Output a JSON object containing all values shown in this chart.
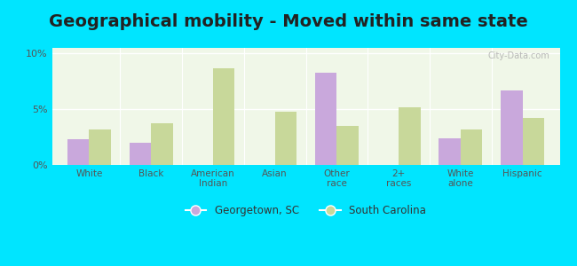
{
  "title": "Geographical mobility - Moved within same state",
  "categories": [
    "White",
    "Black",
    "American\nIndian",
    "Asian",
    "Other\nrace",
    "2+\nraces",
    "White\nalone",
    "Hispanic"
  ],
  "georgetown_values": [
    2.3,
    2.0,
    0.0,
    0.0,
    8.3,
    0.0,
    2.4,
    6.7
  ],
  "sc_values": [
    3.2,
    3.7,
    8.7,
    4.8,
    3.5,
    5.2,
    3.2,
    4.2
  ],
  "georgetown_color": "#c9a8dc",
  "sc_color": "#c8d89a",
  "background_outer": "#00e5ff",
  "background_chart": "#f0f7e8",
  "ylim": [
    0,
    10.5
  ],
  "yticks": [
    0,
    5,
    10
  ],
  "ytick_labels": [
    "0%",
    "5%",
    "10%"
  ],
  "legend_georgetown": "Georgetown, SC",
  "legend_sc": "South Carolina",
  "title_fontsize": 14,
  "bar_width": 0.35,
  "watermark": "City-Data.com"
}
